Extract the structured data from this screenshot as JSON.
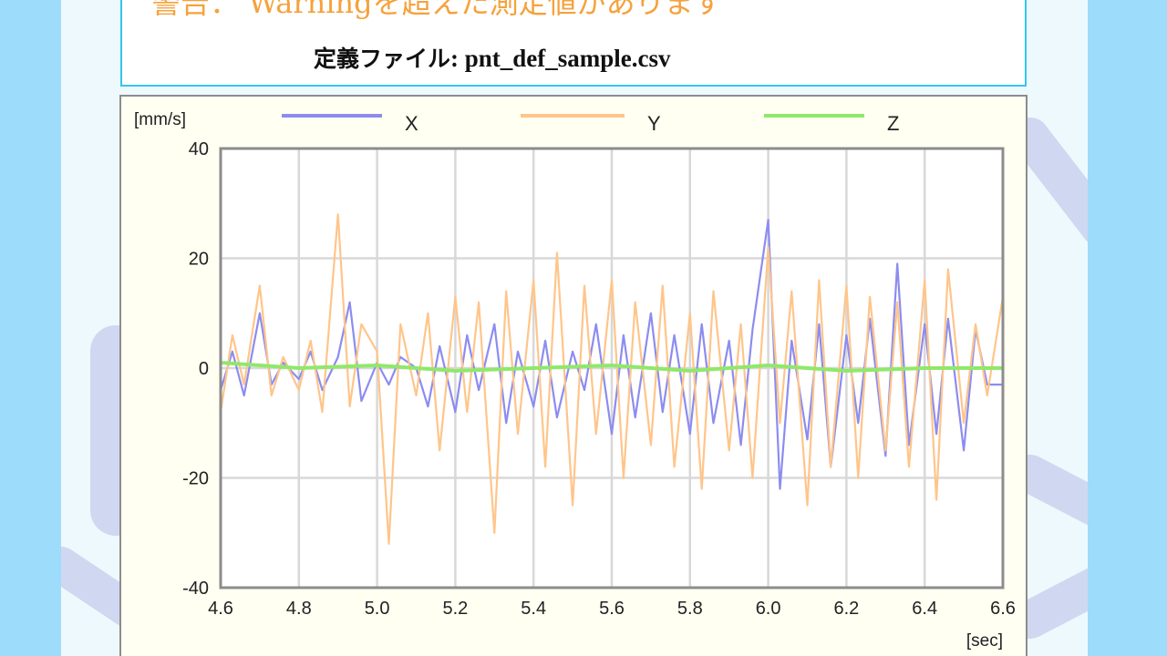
{
  "header": {
    "warning": "警告： Warningを超えた測定値があります",
    "definition_label": "定義ファイル",
    "definition_file": ": pnt_def_sample.csv"
  },
  "colors": {
    "X": "#8c8cf0",
    "Y": "#ffc58a",
    "Z": "#90e86a",
    "frame": "#8c8c8c",
    "grid": "#d8d8d8",
    "header_border": "#33c6ee",
    "warning_text": "#f5a23c"
  },
  "chart_data": {
    "type": "line",
    "title": "",
    "xlabel": "[sec]",
    "ylabel": "[mm/s]",
    "xlim": [
      4.6,
      6.6
    ],
    "ylim": [
      -40,
      40
    ],
    "xticks": [
      "4.6",
      "4.8",
      "5.0",
      "5.2",
      "5.4",
      "5.6",
      "5.8",
      "6.0",
      "6.2",
      "6.4",
      "6.6"
    ],
    "yticks": [
      "40",
      "20",
      "0",
      "-20",
      "-40"
    ],
    "grid": true,
    "legend": "top",
    "series": [
      {
        "name": "X",
        "x": [
          4.6,
          4.63,
          4.66,
          4.7,
          4.73,
          4.76,
          4.8,
          4.83,
          4.86,
          4.9,
          4.93,
          4.96,
          5.0,
          5.03,
          5.06,
          5.1,
          5.13,
          5.16,
          5.2,
          5.23,
          5.26,
          5.3,
          5.33,
          5.36,
          5.4,
          5.43,
          5.46,
          5.5,
          5.53,
          5.56,
          5.6,
          5.63,
          5.66,
          5.7,
          5.73,
          5.76,
          5.8,
          5.83,
          5.86,
          5.9,
          5.93,
          5.96,
          6.0,
          6.03,
          6.06,
          6.1,
          6.13,
          6.16,
          6.2,
          6.23,
          6.26,
          6.3,
          6.33,
          6.36,
          6.4,
          6.43,
          6.46,
          6.5,
          6.53,
          6.56,
          6.6
        ],
        "values": [
          -4,
          3,
          -5,
          10,
          -3,
          1,
          -2,
          3,
          -4,
          2,
          12,
          -6,
          1,
          -3,
          2,
          0,
          -7,
          4,
          -8,
          6,
          -4,
          8,
          -10,
          3,
          -7,
          5,
          -9,
          3,
          -4,
          8,
          -12,
          6,
          -9,
          10,
          -8,
          6,
          -12,
          8,
          -10,
          5,
          -14,
          7,
          27,
          -22,
          5,
          -13,
          8,
          -18,
          6,
          -10,
          9,
          -16,
          19,
          -14,
          8,
          -12,
          9,
          -15,
          7,
          -3,
          -3
        ]
      },
      {
        "name": "Y",
        "x": [
          4.6,
          4.63,
          4.66,
          4.7,
          4.73,
          4.76,
          4.8,
          4.83,
          4.86,
          4.9,
          4.93,
          4.96,
          5.0,
          5.03,
          5.06,
          5.1,
          5.13,
          5.16,
          5.2,
          5.23,
          5.26,
          5.3,
          5.33,
          5.36,
          5.4,
          5.43,
          5.46,
          5.5,
          5.53,
          5.56,
          5.6,
          5.63,
          5.66,
          5.7,
          5.73,
          5.76,
          5.8,
          5.83,
          5.86,
          5.9,
          5.93,
          5.96,
          6.0,
          6.03,
          6.06,
          6.1,
          6.13,
          6.16,
          6.2,
          6.23,
          6.26,
          6.3,
          6.33,
          6.36,
          6.4,
          6.43,
          6.46,
          6.5,
          6.53,
          6.56,
          6.6
        ],
        "values": [
          -8,
          6,
          -3,
          15,
          -5,
          2,
          -4,
          5,
          -8,
          28,
          -7,
          8,
          3,
          -32,
          8,
          -5,
          10,
          -15,
          13,
          -8,
          12,
          -30,
          14,
          -12,
          16,
          -18,
          21,
          -25,
          15,
          -12,
          16,
          -20,
          12,
          -14,
          15,
          -18,
          10,
          -22,
          14,
          -15,
          8,
          -20,
          22,
          -10,
          14,
          -25,
          16,
          -18,
          15,
          -20,
          13,
          -15,
          12,
          -18,
          16,
          -24,
          18,
          -10,
          8,
          -5,
          13
        ]
      },
      {
        "name": "Z",
        "x": [
          4.6,
          4.8,
          5.0,
          5.2,
          5.4,
          5.6,
          5.8,
          6.0,
          6.2,
          6.4,
          6.6
        ],
        "values": [
          1,
          0,
          0.5,
          -0.5,
          0,
          0.5,
          -0.5,
          0.5,
          -0.5,
          0,
          0
        ]
      }
    ]
  }
}
